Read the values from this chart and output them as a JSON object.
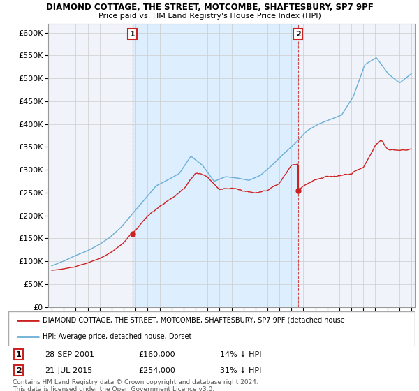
{
  "title": "DIAMOND COTTAGE, THE STREET, MOTCOMBE, SHAFTESBURY, SP7 9PF",
  "subtitle": "Price paid vs. HM Land Registry's House Price Index (HPI)",
  "legend_line1": "DIAMOND COTTAGE, THE STREET, MOTCOMBE, SHAFTESBURY, SP7 9PF (detached house",
  "legend_line2": "HPI: Average price, detached house, Dorset",
  "annotation1_date": "28-SEP-2001",
  "annotation1_price": "£160,000",
  "annotation1_hpi": "14% ↓ HPI",
  "annotation2_date": "21-JUL-2015",
  "annotation2_price": "£254,000",
  "annotation2_hpi": "31% ↓ HPI",
  "copyright": "Contains HM Land Registry data © Crown copyright and database right 2024.\nThis data is licensed under the Open Government Licence v3.0.",
  "ylim": [
    0,
    620000
  ],
  "yticks": [
    0,
    50000,
    100000,
    150000,
    200000,
    250000,
    300000,
    350000,
    400000,
    450000,
    500000,
    550000,
    600000
  ],
  "xlim_start": 1994.7,
  "xlim_end": 2025.3,
  "sale1_x": 2001.74,
  "sale1_y": 160000,
  "sale2_x": 2015.55,
  "sale2_y": 254000,
  "sale2_pre_y": 310000,
  "hpi_color": "#6aaed6",
  "price_color": "#cc2222",
  "shade_color": "#ddeeff",
  "annotation_box_color": "#cc2222",
  "bg_color": "#ffffff",
  "grid_color": "#cccccc",
  "plot_bg_color": "#f0f4fa"
}
